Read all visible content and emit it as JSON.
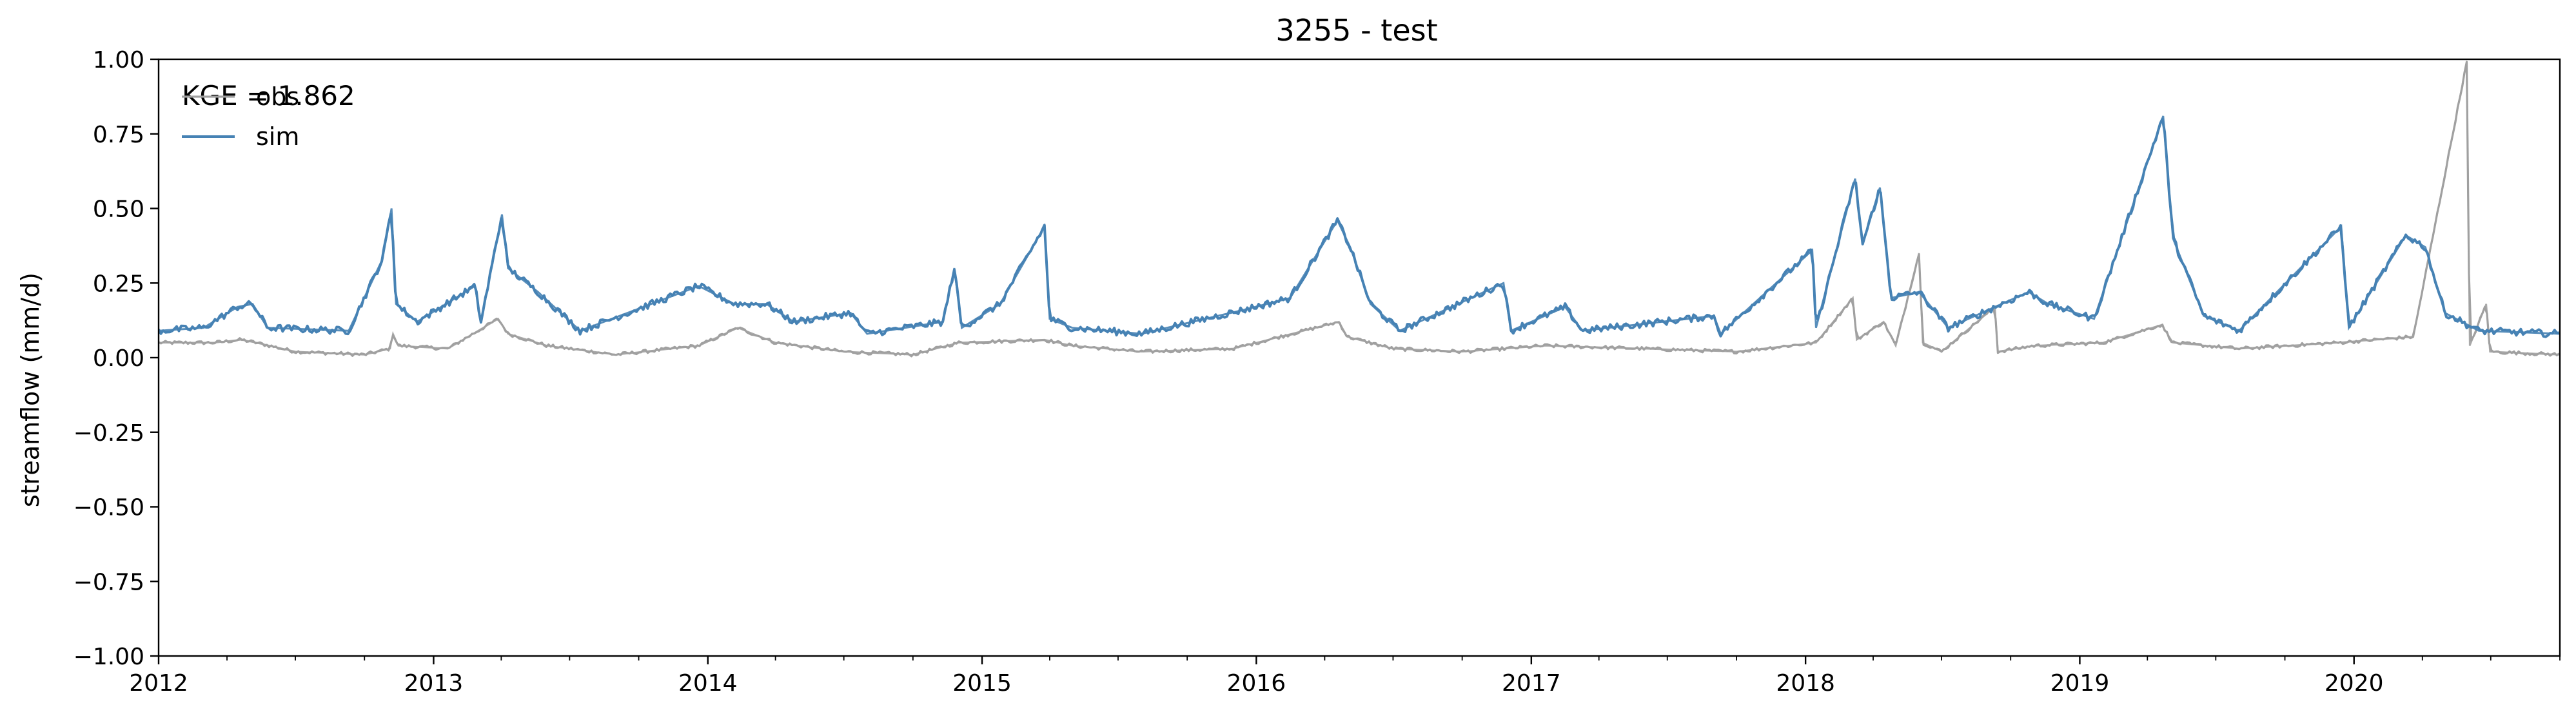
{
  "chart_data": {
    "type": "line",
    "title": "3255 - test",
    "xlabel": "",
    "ylabel": "streamflow (mm/d)",
    "xlim": [
      "2012-01-01",
      "2020-10-01"
    ],
    "ylim": [
      -1.0,
      1.0
    ],
    "y_ticks": [
      -1.0,
      -0.75,
      -0.5,
      -0.25,
      0.0,
      0.25,
      0.5,
      0.75,
      1.0
    ],
    "y_tick_labels": [
      "−1.00",
      "−0.75",
      "−0.50",
      "−0.25",
      "0.00",
      "0.25",
      "0.50",
      "0.75",
      "1.00"
    ],
    "x_ticks": [
      "2012-01-01",
      "2013-01-01",
      "2014-01-01",
      "2015-01-01",
      "2016-01-01",
      "2017-01-01",
      "2018-01-01",
      "2019-01-01",
      "2020-01-01"
    ],
    "x_tick_labels": [
      "2012",
      "2013",
      "2014",
      "2015",
      "2016",
      "2017",
      "2018",
      "2019",
      "2020"
    ],
    "grid": false,
    "legend_position": "top-left",
    "annotation": "KGE = 1.862",
    "series": [
      {
        "name": "obs",
        "color": "#a0a0a0",
        "base": 0.02,
        "points": [
          [
            "2012-01-01",
            0.05
          ],
          [
            "2012-03-15",
            0.05
          ],
          [
            "2012-04-20",
            0.06
          ],
          [
            "2012-05-10",
            0.05
          ],
          [
            "2012-07-01",
            0.02
          ],
          [
            "2012-10-01",
            0.01
          ],
          [
            "2012-11-04",
            0.03
          ],
          [
            "2012-11-08",
            0.08
          ],
          [
            "2012-11-15",
            0.04
          ],
          [
            "2013-01-20",
            0.03
          ],
          [
            "2013-03-28",
            0.13
          ],
          [
            "2013-04-10",
            0.08
          ],
          [
            "2013-06-01",
            0.04
          ],
          [
            "2013-09-01",
            0.01
          ],
          [
            "2013-12-20",
            0.04
          ],
          [
            "2014-02-10",
            0.1
          ],
          [
            "2014-04-01",
            0.05
          ],
          [
            "2014-07-01",
            0.02
          ],
          [
            "2014-10-01",
            0.01
          ],
          [
            "2014-12-01",
            0.05
          ],
          [
            "2015-03-25",
            0.06
          ],
          [
            "2015-05-01",
            0.04
          ],
          [
            "2015-08-01",
            0.02
          ],
          [
            "2015-12-01",
            0.03
          ],
          [
            "2016-04-20",
            0.12
          ],
          [
            "2016-05-01",
            0.07
          ],
          [
            "2016-07-01",
            0.03
          ],
          [
            "2016-10-01",
            0.02
          ],
          [
            "2017-01-20",
            0.04
          ],
          [
            "2017-06-01",
            0.03
          ],
          [
            "2017-10-01",
            0.02
          ],
          [
            "2018-01-15",
            0.05
          ],
          [
            "2018-03-05",
            0.2
          ],
          [
            "2018-03-10",
            0.06
          ],
          [
            "2018-04-15",
            0.12
          ],
          [
            "2018-05-01",
            0.04
          ],
          [
            "2018-06-01",
            0.35
          ],
          [
            "2018-06-06",
            0.05
          ],
          [
            "2018-07-01",
            0.02
          ],
          [
            "2018-09-10",
            0.17
          ],
          [
            "2018-09-14",
            0.02
          ],
          [
            "2018-11-01",
            0.04
          ],
          [
            "2019-02-01",
            0.05
          ],
          [
            "2019-04-20",
            0.11
          ],
          [
            "2019-05-05",
            0.05
          ],
          [
            "2019-08-01",
            0.03
          ],
          [
            "2019-12-10",
            0.05
          ],
          [
            "2020-03-20",
            0.07
          ],
          [
            "2020-05-30",
            0.99
          ],
          [
            "2020-06-03",
            0.04
          ],
          [
            "2020-06-25",
            0.18
          ],
          [
            "2020-06-30",
            0.02
          ],
          [
            "2020-10-01",
            0.01
          ]
        ]
      },
      {
        "name": "sim",
        "color": "#4682b4",
        "base": 0.08,
        "points": [
          [
            "2012-01-01",
            0.09
          ],
          [
            "2012-03-01",
            0.1
          ],
          [
            "2012-04-15",
            0.17
          ],
          [
            "2012-05-05",
            0.18
          ],
          [
            "2012-05-25",
            0.1
          ],
          [
            "2012-09-10",
            0.09
          ],
          [
            "2012-10-25",
            0.33
          ],
          [
            "2012-11-06",
            0.5
          ],
          [
            "2012-11-12",
            0.18
          ],
          [
            "2012-12-10",
            0.12
          ],
          [
            "2013-02-25",
            0.24
          ],
          [
            "2013-03-05",
            0.12
          ],
          [
            "2013-04-02",
            0.48
          ],
          [
            "2013-04-10",
            0.3
          ],
          [
            "2013-05-20",
            0.22
          ],
          [
            "2013-07-15",
            0.09
          ],
          [
            "2013-12-20",
            0.24
          ],
          [
            "2014-02-05",
            0.18
          ],
          [
            "2014-03-20",
            0.18
          ],
          [
            "2014-04-25",
            0.12
          ],
          [
            "2014-07-10",
            0.15
          ],
          [
            "2014-08-01",
            0.08
          ],
          [
            "2014-11-10",
            0.12
          ],
          [
            "2014-11-25",
            0.3
          ],
          [
            "2014-12-05",
            0.1
          ],
          [
            "2015-01-25",
            0.18
          ],
          [
            "2015-03-25",
            0.44
          ],
          [
            "2015-04-01",
            0.13
          ],
          [
            "2015-05-01",
            0.1
          ],
          [
            "2015-08-01",
            0.08
          ],
          [
            "2015-12-15",
            0.16
          ],
          [
            "2016-02-15",
            0.2
          ],
          [
            "2016-04-18",
            0.46
          ],
          [
            "2016-05-05",
            0.37
          ],
          [
            "2016-06-01",
            0.18
          ],
          [
            "2016-07-10",
            0.09
          ],
          [
            "2016-11-25",
            0.25
          ],
          [
            "2016-12-05",
            0.09
          ],
          [
            "2017-02-15",
            0.17
          ],
          [
            "2017-03-10",
            0.09
          ],
          [
            "2017-09-01",
            0.14
          ],
          [
            "2017-09-10",
            0.08
          ],
          [
            "2018-01-10",
            0.36
          ],
          [
            "2018-01-15",
            0.1
          ],
          [
            "2018-03-08",
            0.6
          ],
          [
            "2018-03-18",
            0.38
          ],
          [
            "2018-04-10",
            0.57
          ],
          [
            "2018-04-25",
            0.2
          ],
          [
            "2018-06-01",
            0.22
          ],
          [
            "2018-07-10",
            0.1
          ],
          [
            "2018-10-25",
            0.22
          ],
          [
            "2018-11-20",
            0.18
          ],
          [
            "2019-01-20",
            0.13
          ],
          [
            "2019-04-22",
            0.81
          ],
          [
            "2019-05-05",
            0.4
          ],
          [
            "2019-06-15",
            0.14
          ],
          [
            "2019-08-01",
            0.09
          ],
          [
            "2019-12-15",
            0.44
          ],
          [
            "2019-12-25",
            0.1
          ],
          [
            "2020-03-10",
            0.41
          ],
          [
            "2020-04-05",
            0.37
          ],
          [
            "2020-05-01",
            0.15
          ],
          [
            "2020-06-15",
            0.09
          ],
          [
            "2020-10-01",
            0.08
          ]
        ]
      }
    ]
  }
}
